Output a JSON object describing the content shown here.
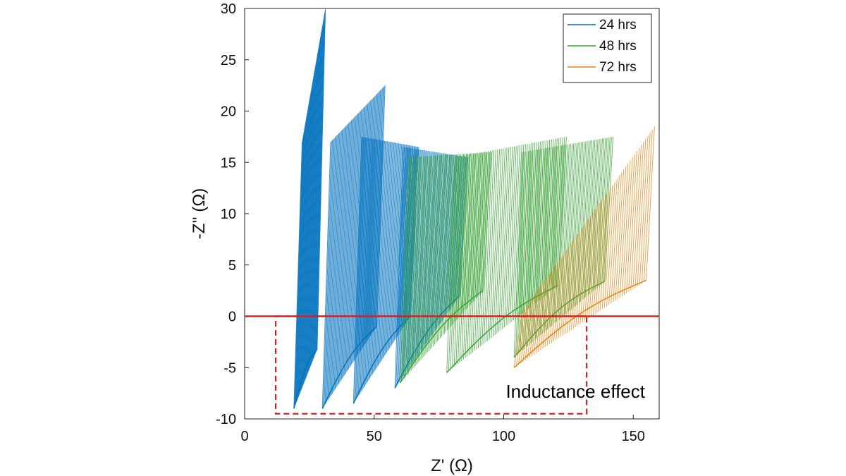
{
  "chart_data": {
    "type": "line",
    "title": "",
    "xlabel": "Z' (Ω)",
    "ylabel": "-Z'' (Ω)",
    "xlim": [
      0,
      160
    ],
    "ylim": [
      -10,
      30
    ],
    "xticks": [
      0,
      50,
      100,
      150
    ],
    "yticks": [
      30,
      25,
      20,
      15,
      10,
      5,
      0,
      -5,
      -10
    ],
    "grid": false,
    "legend_position": "top-right",
    "series": [
      {
        "name": "24 hrs",
        "color": "#0072BD",
        "bands": [
          {
            "x": [
              19,
              28
            ],
            "low": [
              -9,
              -3.2
            ],
            "high": [
              17,
              30
            ]
          },
          {
            "x": [
              30,
              51
            ],
            "low": [
              -9,
              -1
            ],
            "high": [
              17,
              22.5
            ]
          },
          {
            "x": [
              42,
              64
            ],
            "low": [
              -8.5,
              0
            ],
            "high": [
              17.5,
              16.5
            ]
          },
          {
            "x": [
              58,
              83
            ],
            "low": [
              -7,
              2
            ],
            "high": [
              16.5,
              15.5
            ]
          }
        ]
      },
      {
        "name": "48 hrs",
        "color": "#3AA335",
        "bands": [
          {
            "x": [
              60,
              92
            ],
            "low": [
              -6.5,
              2.5
            ],
            "high": [
              15.5,
              16
            ]
          },
          {
            "x": [
              78,
              121
            ],
            "low": [
              -5.5,
              3
            ],
            "high": [
              15.5,
              17.5
            ]
          },
          {
            "x": [
              104,
              139
            ],
            "low": [
              -4,
              3.4
            ],
            "high": [
              16,
              17.5
            ]
          }
        ]
      },
      {
        "name": "72 hrs",
        "color": "#E8820E",
        "bands": [
          {
            "x": [
              104,
              155
            ],
            "low": [
              -5,
              3.5
            ],
            "high": [
              0.5,
              18.5
            ]
          }
        ]
      }
    ],
    "reference_line": {
      "y": 0,
      "color": "#E01E1E"
    },
    "annotation": {
      "text": "Inductance effect",
      "box_x": [
        12,
        132
      ],
      "box_y": [
        -9.5,
        0
      ],
      "color": "#E01E1E"
    }
  }
}
